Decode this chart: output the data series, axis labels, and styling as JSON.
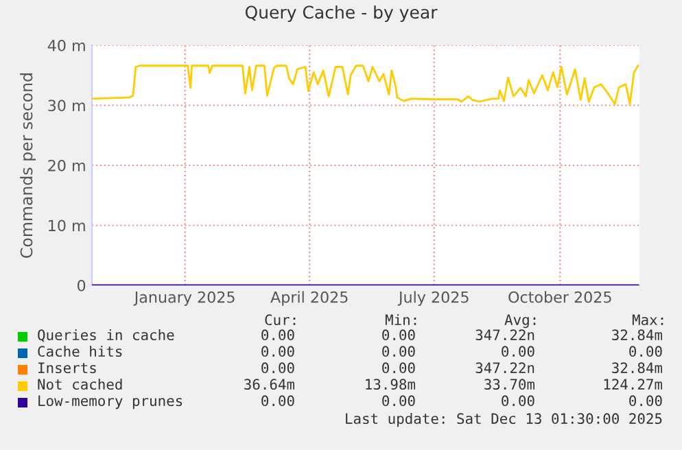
{
  "chart_data": {
    "type": "line",
    "title": "Query Cache - by year",
    "ylabel": "Commands per second",
    "xlim": [
      "2024-11-08",
      "2025-12-13"
    ],
    "xticks": [
      {
        "value": "2025-01-15",
        "label": "January 2025"
      },
      {
        "value": "2025-04-16",
        "label": "April 2025"
      },
      {
        "value": "2025-07-16",
        "label": "July 2025"
      },
      {
        "value": "2025-10-16",
        "label": "October 2025"
      }
    ],
    "ylim": [
      0,
      40
    ],
    "yticks": [
      0,
      {
        "value": 10,
        "label": "10 m"
      },
      {
        "value": 20,
        "label": "20 m"
      },
      {
        "value": 30,
        "label": "30 m"
      },
      {
        "value": 40,
        "label": "40 m"
      }
    ],
    "grid": true,
    "legend": "bottom",
    "series": [
      {
        "name": "Queries in cache",
        "color": "#00cc00"
      },
      {
        "name": "Cache hits",
        "color": "#0066b3"
      },
      {
        "name": "Inserts",
        "color": "#ff8000"
      },
      {
        "name": "Not cached",
        "color": "#ffcc00",
        "x": [
          "2024-11-08",
          "2024-12-05",
          "2024-12-08",
          "2024-12-10",
          "2024-12-13",
          "2025-01-17",
          "2025-01-19",
          "2025-01-20",
          "2025-02-01",
          "2025-02-02",
          "2025-02-04",
          "2025-02-26",
          "2025-02-28",
          "2025-03-03",
          "2025-03-05",
          "2025-03-08",
          "2025-03-14",
          "2025-03-16",
          "2025-03-21",
          "2025-03-23",
          "2025-03-30",
          "2025-04-01",
          "2025-04-04",
          "2025-04-07",
          "2025-04-13",
          "2025-04-15",
          "2025-04-19",
          "2025-04-22",
          "2025-04-26",
          "2025-04-30",
          "2025-05-05",
          "2025-05-10",
          "2025-05-14",
          "2025-05-16",
          "2025-05-20",
          "2025-05-25",
          "2025-05-29",
          "2025-06-01",
          "2025-06-06",
          "2025-06-09",
          "2025-06-13",
          "2025-06-15",
          "2025-06-18",
          "2025-06-19",
          "2025-06-24",
          "2025-06-29",
          "2025-07-16",
          "2025-08-02",
          "2025-08-05",
          "2025-08-10",
          "2025-08-13",
          "2025-08-18",
          "2025-08-27",
          "2025-09-01",
          "2025-09-02",
          "2025-09-05",
          "2025-09-08",
          "2025-09-12",
          "2025-09-17",
          "2025-09-21",
          "2025-09-23",
          "2025-09-27",
          "2025-10-03",
          "2025-10-07",
          "2025-10-11",
          "2025-10-14",
          "2025-10-17",
          "2025-10-21",
          "2025-10-27",
          "2025-10-31",
          "2025-11-03",
          "2025-11-06",
          "2025-11-10",
          "2025-11-15",
          "2025-11-20",
          "2025-11-25",
          "2025-11-28",
          "2025-12-03",
          "2025-12-06",
          "2025-12-09",
          "2025-12-12"
        ],
        "values": [
          31.1,
          31.3,
          31.6,
          36.4,
          36.6,
          36.6,
          32.9,
          36.6,
          36.6,
          35.4,
          36.6,
          36.6,
          32.0,
          36.4,
          32.5,
          36.6,
          36.6,
          31.6,
          36.2,
          36.6,
          36.6,
          34.5,
          33.5,
          36.0,
          36.4,
          32.4,
          35.5,
          33.5,
          35.8,
          31.5,
          36.4,
          36.4,
          31.8,
          35.0,
          36.6,
          36.6,
          34.0,
          36.4,
          34.0,
          35.2,
          31.8,
          35.8,
          33.0,
          31.3,
          30.7,
          31.1,
          31.0,
          31.0,
          30.6,
          31.5,
          30.9,
          30.6,
          31.1,
          31.1,
          32.5,
          30.7,
          34.6,
          31.5,
          32.9,
          31.5,
          34.2,
          32.0,
          35.0,
          32.5,
          35.5,
          33.0,
          36.4,
          31.8,
          36.0,
          30.9,
          34.5,
          30.6,
          33.0,
          33.5,
          32.0,
          30.2,
          33.0,
          33.5,
          30.2,
          35.5,
          36.6
        ]
      },
      {
        "name": "Low-memory prunes",
        "color": "#330099",
        "x": [
          "2024-11-08",
          "2025-12-12"
        ],
        "values": [
          0,
          0
        ]
      }
    ],
    "annotations": [
      "Cur:",
      "Min:",
      "Avg:",
      "Max:",
      "0.00",
      "0.00",
      "347.22n",
      "32.84m",
      "0.00",
      "0.00",
      "0.00",
      "0.00",
      "0.00",
      "0.00",
      "347.22n",
      "32.84m",
      "36.64m",
      "13.98m",
      "33.70m",
      "124.27m",
      "0.00",
      "0.00",
      "0.00",
      "0.00",
      "Last update: Sat Dec 13 01:30:00 2025"
    ]
  }
}
